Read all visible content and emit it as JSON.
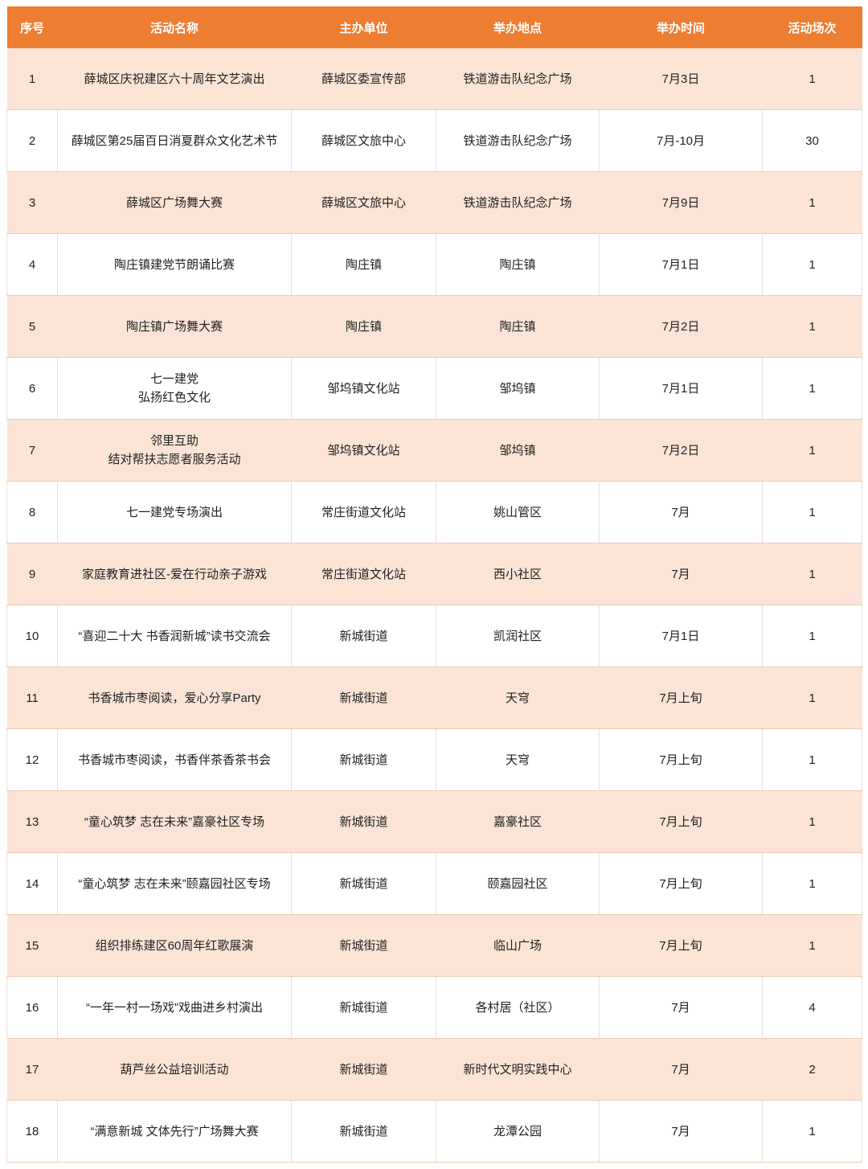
{
  "colors": {
    "header_bg": "#ED7D31",
    "header_text": "#FFFFFF",
    "shaded_row": "#FBE4D5"
  },
  "table": {
    "headers": [
      "序号",
      "活动名称",
      "主办单位",
      "举办地点",
      "举办时间",
      "活动场次"
    ],
    "rows": [
      [
        "1",
        "薛城区庆祝建区六十周年文艺演出",
        "薛城区委宣传部",
        "铁道游击队纪念广场",
        "7月3日",
        "1"
      ],
      [
        "2",
        "薛城区第25届百日消夏群众文化艺术节",
        "薛城区文旅中心",
        "铁道游击队纪念广场",
        "7月-10月",
        "30"
      ],
      [
        "3",
        "薛城区广场舞大赛",
        "薛城区文旅中心",
        "铁道游击队纪念广场",
        "7月9日",
        "1"
      ],
      [
        "4",
        "陶庄镇建党节朗诵比赛",
        "陶庄镇",
        "陶庄镇",
        "7月1日",
        "1"
      ],
      [
        "5",
        "陶庄镇广场舞大赛",
        "陶庄镇",
        "陶庄镇",
        "7月2日",
        "1"
      ],
      [
        "6",
        "七一建党\n弘扬红色文化",
        "邹坞镇文化站",
        "邹坞镇",
        "7月1日",
        "1"
      ],
      [
        "7",
        "邻里互助\n结对帮扶志愿者服务活动",
        "邹坞镇文化站",
        "邹坞镇",
        "7月2日",
        "1"
      ],
      [
        "8",
        "七一建党专场演出",
        "常庄街道文化站",
        "姚山管区",
        "7月",
        "1"
      ],
      [
        "9",
        "家庭教育进社区-爱在行动亲子游戏",
        "常庄街道文化站",
        "西小社区",
        "7月",
        "1"
      ],
      [
        "10",
        "“喜迎二十大 书香润新城”读书交流会",
        "新城街道",
        "凯润社区",
        "7月1日",
        "1"
      ],
      [
        "11",
        "书香城市枣阅读，爱心分享Party",
        "新城街道",
        "天穹",
        "7月上旬",
        "1"
      ],
      [
        "12",
        "书香城市枣阅读，书香伴茶香茶书会",
        "新城街道",
        "天穹",
        "7月上旬",
        "1"
      ],
      [
        "13",
        "“童心筑梦 志在未来”嘉豪社区专场",
        "新城街道",
        "嘉豪社区",
        "7月上旬",
        "1"
      ],
      [
        "14",
        "“童心筑梦 志在未来”颐嘉园社区专场",
        "新城街道",
        "颐嘉园社区",
        "7月上旬",
        "1"
      ],
      [
        "15",
        "组织排练建区60周年红歌展演",
        "新城街道",
        "临山广场",
        "7月上旬",
        "1"
      ],
      [
        "16",
        "“一年一村一场戏”戏曲进乡村演出",
        "新城街道",
        "各村居（社区）",
        "7月",
        "4"
      ],
      [
        "17",
        "葫芦丝公益培训活动",
        "新城街道",
        "新时代文明实践中心",
        "7月",
        "2"
      ],
      [
        "18",
        "“满意新城 文体先行”广场舞大赛",
        "新城街道",
        "龙潭公园",
        "7月",
        "1"
      ]
    ]
  }
}
